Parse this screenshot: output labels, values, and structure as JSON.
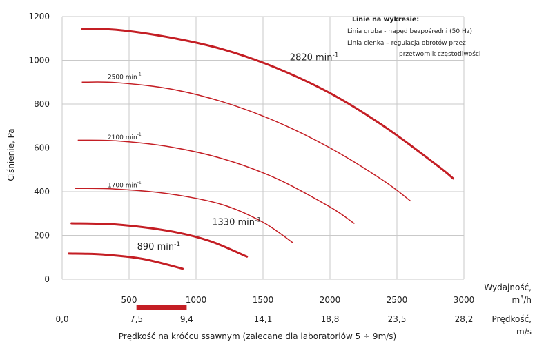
{
  "chart_data": {
    "type": "line",
    "ylabel": "Ciśnienie, Pa",
    "ylim": [
      0,
      1200
    ],
    "yticks": [
      "0",
      "200",
      "400",
      "600",
      "800",
      "1000",
      "1200"
    ],
    "xlim": [
      0,
      3000
    ],
    "xticks": [
      0,
      500,
      1000,
      1500,
      2000,
      2500,
      3000
    ],
    "flow_axis": {
      "label_line1": "Wydajność,",
      "label_line2_base": "m",
      "label_line2_sup": "3",
      "label_line2_rest": "/h",
      "tick_labels": [
        "500",
        "1000",
        "1500",
        "2000",
        "2500",
        "3000"
      ]
    },
    "velocity_axis": {
      "label_line1": "Prędkość,",
      "label_line2": "m/s",
      "tick_labels": [
        "0,0",
        "7,5",
        "9,4",
        "14,1",
        "18,8",
        "23,5",
        "28,2"
      ]
    },
    "xlabel": "Prędkość na króćcu ssawnym (zalecane dla laboratoriów 5 ÷ 9m/s)",
    "recommended_range": [
      555,
      930
    ],
    "grid": true,
    "legend": {
      "title": "Linie na wykresie:",
      "lines": [
        "Linia gruba - napęd bezpośredni (50 Hz)",
        "Linia cienka – regulacja obrotów przez",
        "przetwornik częstotliwości"
      ]
    },
    "series": [
      {
        "name": "2820",
        "thick": true,
        "label_pos": [
          1700,
          1000
        ],
        "label_size": 13,
        "x": [
          150,
          400,
          800,
          1200,
          1600,
          2000,
          2400,
          2800,
          2920
        ],
        "y": [
          1142,
          1140,
          1105,
          1050,
          965,
          850,
          700,
          520,
          460
        ]
      },
      {
        "name": "2500",
        "thick": false,
        "label_pos": [
          340,
          915
        ],
        "label_size": 9,
        "x": [
          150,
          400,
          800,
          1200,
          1600,
          2000,
          2400,
          2600
        ],
        "y": [
          900,
          898,
          870,
          810,
          720,
          600,
          450,
          358
        ]
      },
      {
        "name": "2100",
        "thick": false,
        "label_pos": [
          340,
          640
        ],
        "label_size": 9,
        "x": [
          120,
          400,
          800,
          1200,
          1600,
          2000,
          2180
        ],
        "y": [
          635,
          632,
          605,
          550,
          460,
          330,
          255
        ]
      },
      {
        "name": "1700",
        "thick": false,
        "label_pos": [
          340,
          420
        ],
        "label_size": 9,
        "x": [
          100,
          400,
          800,
          1200,
          1500,
          1720
        ],
        "y": [
          415,
          412,
          390,
          340,
          260,
          168
        ]
      },
      {
        "name": "1330",
        "thick": true,
        "label_pos": [
          1120,
          248
        ],
        "label_size": 13,
        "x": [
          70,
          400,
          800,
          1100,
          1380
        ],
        "y": [
          255,
          250,
          220,
          175,
          103
        ]
      },
      {
        "name": "890",
        "thick": true,
        "label_pos": [
          560,
          135
        ],
        "label_size": 13,
        "x": [
          50,
          300,
          600,
          900
        ],
        "y": [
          117,
          113,
          93,
          48
        ]
      }
    ],
    "unit_base": "min",
    "unit_sup": "-1",
    "line_color": "#c41e24"
  }
}
